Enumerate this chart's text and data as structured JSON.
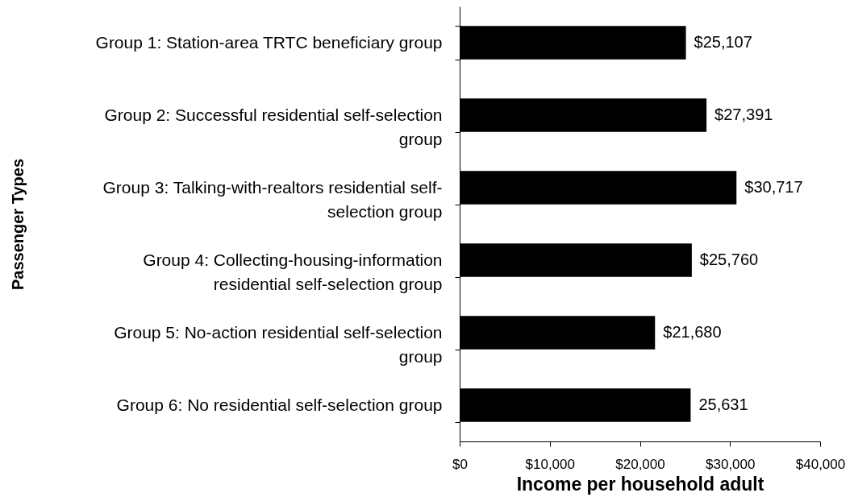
{
  "chart_data": {
    "type": "bar",
    "orientation": "horizontal",
    "xlabel": "Income per household adult",
    "ylabel": "Passenger Types",
    "categories": [
      "Group 1: Station-area TRTC beneficiary group",
      "Group 2: Successful residential self-selection group",
      "Group 3: Talking-with-realtors residential self-selection group",
      "Group 4: Collecting-housing-information residential self-selection group",
      "Group 5: No-action residential self-selection group",
      "Group 6: No residential self-selection group"
    ],
    "values": [
      25107,
      27391,
      30717,
      25760,
      21680,
      25631
    ],
    "value_labels": [
      "$25,107",
      "$27,391",
      "$30,717",
      "$25,760",
      "$21,680",
      "25,631"
    ],
    "color": "#000000",
    "xlim": [
      0,
      40000
    ],
    "xticks": [
      {
        "value": 0,
        "label": "$0"
      },
      {
        "value": 10000,
        "label": "$10,000"
      },
      {
        "value": 20000,
        "label": "$20,000"
      },
      {
        "value": 30000,
        "label": "$30,000"
      },
      {
        "value": 40000,
        "label": "$40,000"
      }
    ],
    "grid": false
  }
}
